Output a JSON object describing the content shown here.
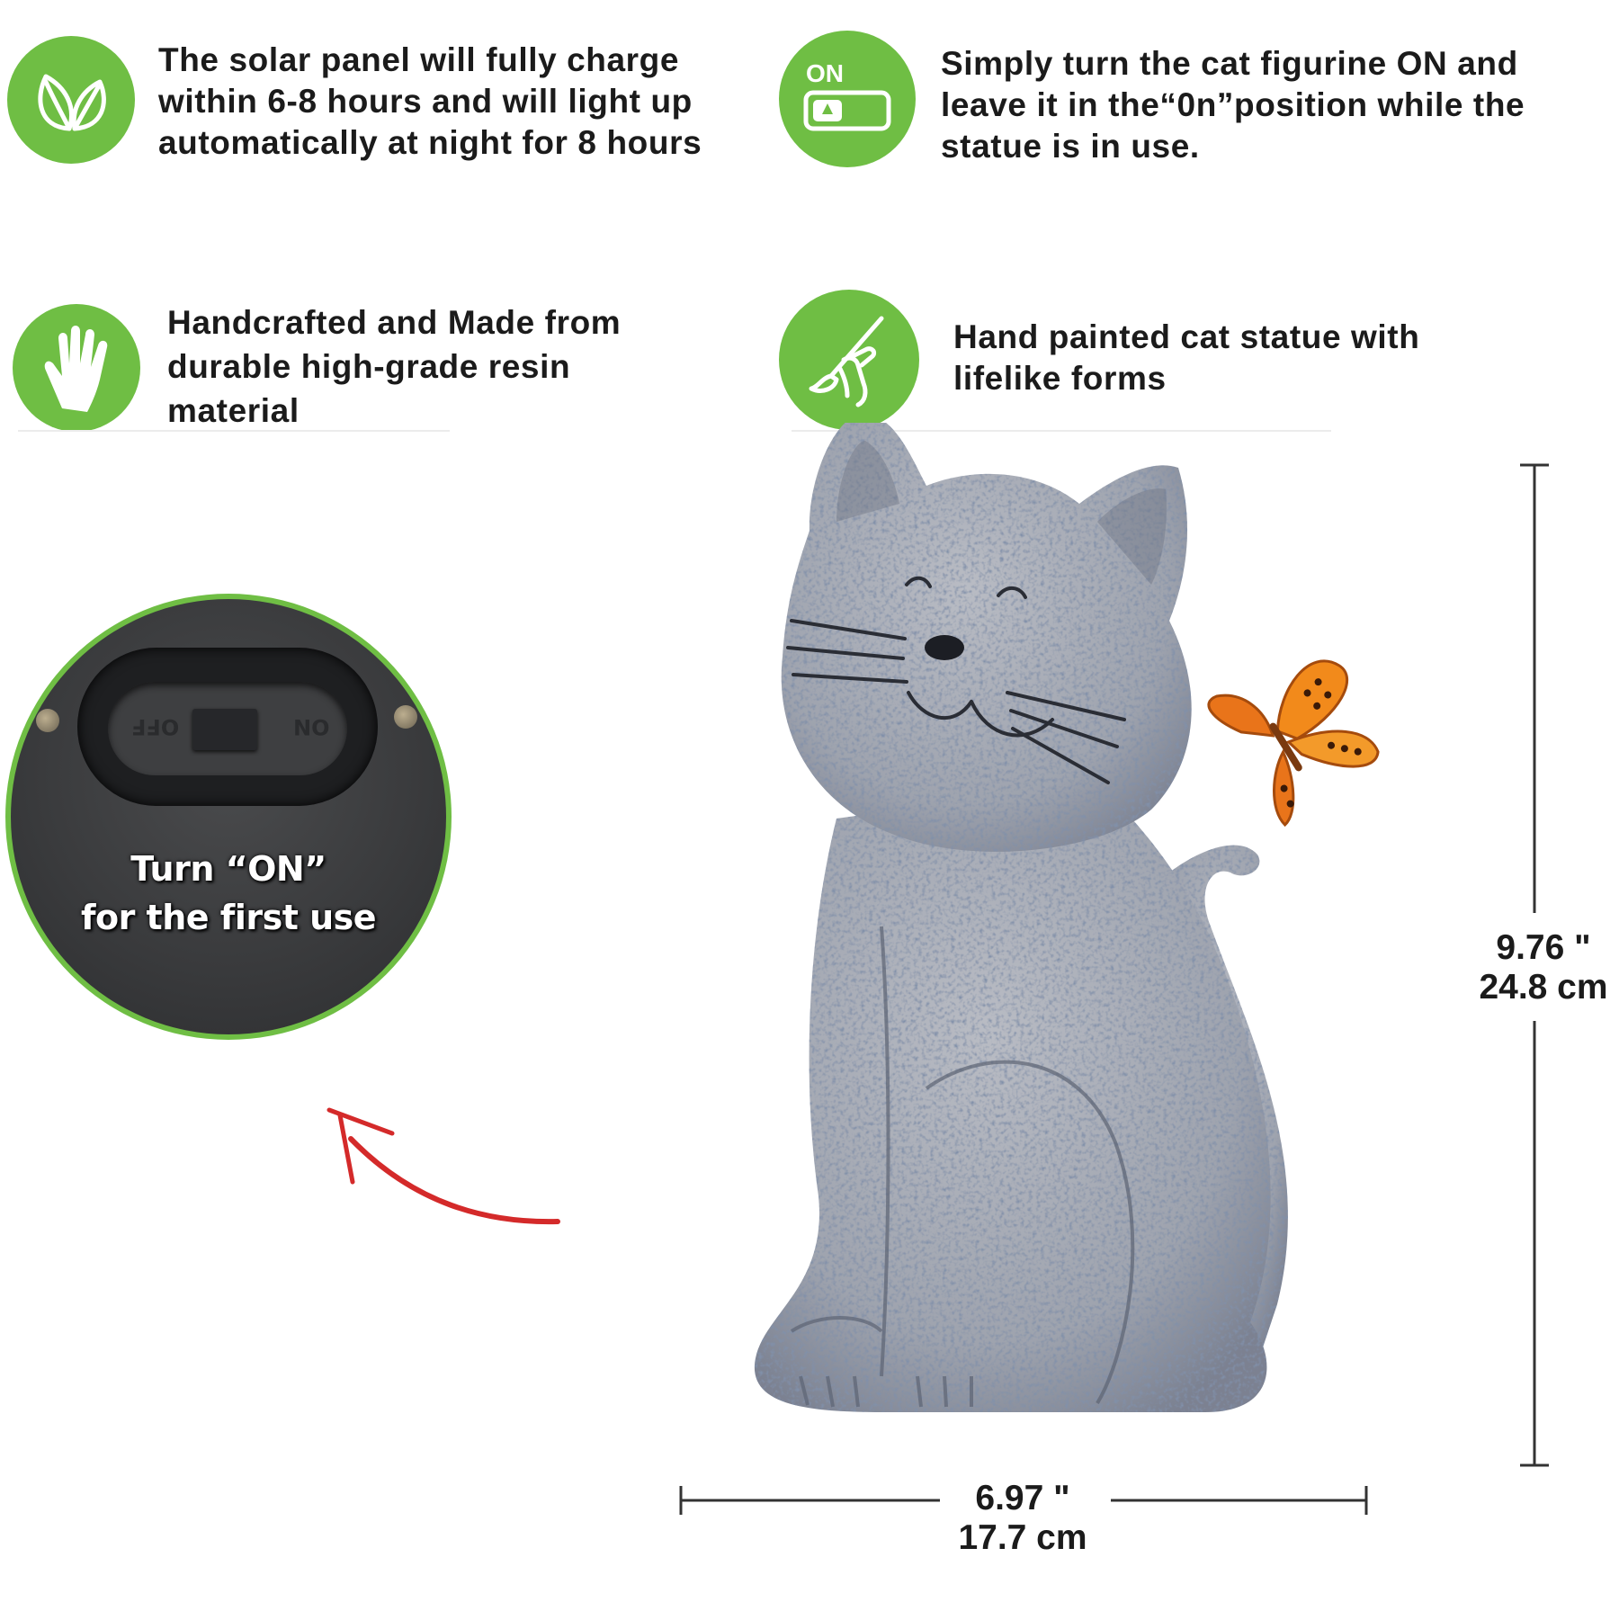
{
  "colors": {
    "badge_green": "#6fbe44",
    "arrow_red": "#d42a2a",
    "butterfly_orange": "#f28a1b"
  },
  "features": [
    {
      "icon": "leaf-icon",
      "lines": [
        "The solar panel will fully charge",
        "within 6-8 hours and will light up",
        "automatically at night for 8 hours"
      ]
    },
    {
      "icon": "power-switch-icon",
      "icon_label": "ON",
      "lines": [
        "Simply turn the cat figurine ON and",
        "leave it in the“0n”position while the",
        "statue is in use."
      ]
    },
    {
      "icon": "hand-icon",
      "lines": [
        "Handcrafted and Made from",
        "durable high-grade resin",
        "material"
      ]
    },
    {
      "icon": "paintbrush-hand-icon",
      "lines": [
        "Hand painted cat statue with",
        "lifelike forms"
      ]
    }
  ],
  "inset": {
    "switch_left_label": "OFF",
    "switch_right_label": "ON",
    "caption_line1": "Turn “ON”",
    "caption_line2": "for the first use"
  },
  "dimensions": {
    "height_in": "9.76 \"",
    "height_cm": "24.8 cm",
    "width_in": "6.97 \"",
    "width_cm": "17.7 cm"
  }
}
